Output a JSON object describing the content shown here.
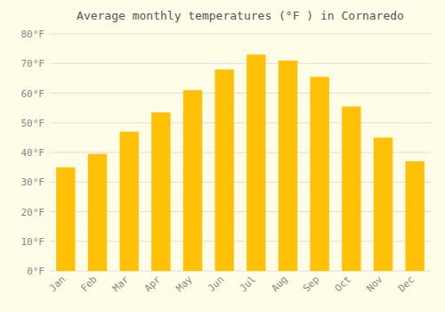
{
  "chart_data": {
    "type": "bar",
    "title": "Average monthly temperatures (°F ) in Cornaredo",
    "categories": [
      "Jan",
      "Feb",
      "Mar",
      "Apr",
      "May",
      "Jun",
      "Jul",
      "Aug",
      "Sep",
      "Oct",
      "Nov",
      "Dec"
    ],
    "values": [
      35,
      39.5,
      47,
      53.5,
      61,
      68,
      73,
      71,
      65.5,
      55.5,
      45,
      37
    ],
    "color": "#FFC107",
    "ylim": [
      0,
      80
    ],
    "yticks": [
      {
        "value": 0,
        "label": "0°F"
      },
      {
        "value": 10,
        "label": "10°F"
      },
      {
        "value": 20,
        "label": "20°F"
      },
      {
        "value": 30,
        "label": "30°F"
      },
      {
        "value": 40,
        "label": "40°F"
      },
      {
        "value": 50,
        "label": "50°F"
      },
      {
        "value": 60,
        "label": "60°F"
      },
      {
        "value": 70,
        "label": "70°F"
      },
      {
        "value": 80,
        "label": "80°F"
      }
    ],
    "grid": true
  }
}
